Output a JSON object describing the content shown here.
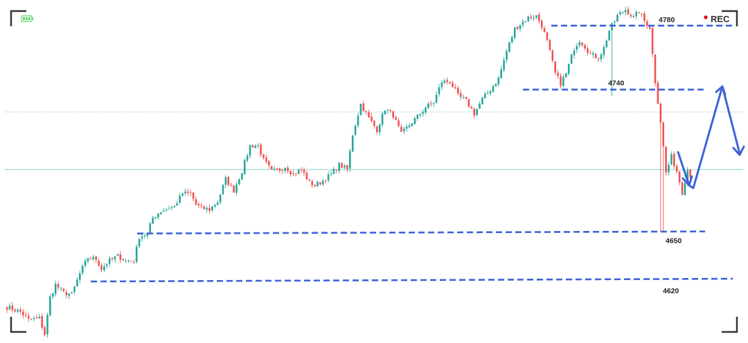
{
  "header": {
    "rec_label": "REC",
    "rec_dot_color": "#e00000",
    "battery_color": "#5dd36a"
  },
  "colors": {
    "up": "#26a69a",
    "down": "#ef5350",
    "level_line": "#3d63d8",
    "reference_line": "#73c9c4",
    "frame_corner": "#333333"
  },
  "chart_data": {
    "type": "candlestick",
    "title": "",
    "xlabel": "",
    "ylabel": "",
    "ylim": [
      4585,
      4793
    ],
    "horizontal_levels": [
      {
        "label": "4780",
        "value": 4780
      },
      {
        "label": "4740",
        "value": 4740
      },
      {
        "label": "4650",
        "value": 4650
      },
      {
        "label": "4620",
        "value": 4620
      }
    ],
    "reference_lines": [
      {
        "value": 4726,
        "style": "dotted"
      },
      {
        "value": 4690,
        "style": "solid"
      }
    ],
    "projection_path": {
      "description": "drawn forecast arrow",
      "points": [
        [
          0,
          4690
        ],
        [
          1,
          4660
        ],
        [
          2,
          4665
        ],
        [
          3,
          4730
        ],
        [
          4,
          4690
        ]
      ]
    },
    "candles": []
  }
}
